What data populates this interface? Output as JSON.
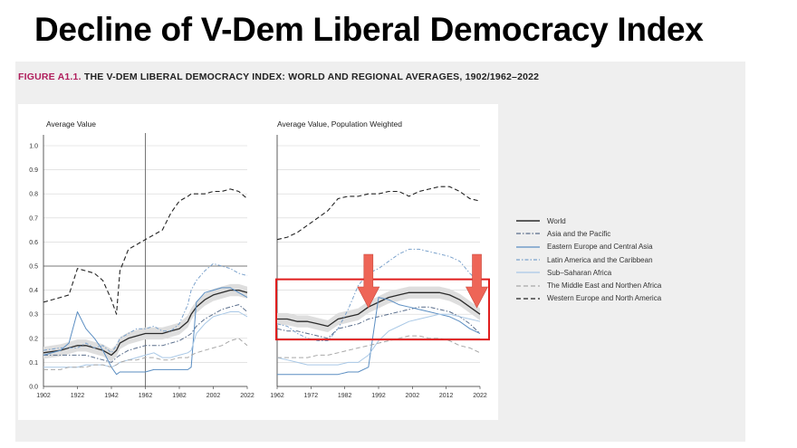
{
  "slide": {
    "title": "Decline of V-Dem Liberal Democracy Index"
  },
  "figure": {
    "label": "FIGURE A1.1.",
    "caption": "THE V-DEM LIBERAL DEMOCRACY INDEX: WORLD AND REGIONAL AVERAGES, 1902/1962–2022"
  },
  "colors": {
    "world": "#2b2b2b",
    "asia_pacific": "#5a6e8c",
    "eastern_europe": "#5b8ec2",
    "latin_america": "#7ba2cc",
    "sub_saharan": "#a9c8e6",
    "middle_east": "#a8a8a8",
    "western_europe": "#222222",
    "highlight_box": "#e01e1e",
    "arrow": "#ee6557",
    "confidence_band": "#dedede"
  },
  "legend": [
    {
      "key": "world",
      "label": "World"
    },
    {
      "key": "asia_pacific",
      "label": "Asia and the Pacific"
    },
    {
      "key": "eastern_europe",
      "label": "Eastern Europe and Central Asia"
    },
    {
      "key": "latin_america",
      "label": "Latin America and the Caribbean"
    },
    {
      "key": "sub_saharan",
      "label": "Sub–Saharan Africa"
    },
    {
      "key": "middle_east",
      "label": "The Middle East and Northen Africa"
    },
    {
      "key": "western_europe",
      "label": "Western Europe and North America"
    }
  ],
  "chart_data": [
    {
      "type": "line",
      "title": "Average Value",
      "xlabel": "",
      "ylabel": "",
      "xlim": [
        1902,
        2022
      ],
      "ylim": [
        0,
        1
      ],
      "x_ticks": [
        "1902",
        "1922",
        "1942",
        "1962",
        "1982",
        "2002",
        "2022"
      ],
      "y_ticks": [
        "0.0",
        "0.1",
        "0.2",
        "0.3",
        "0.4",
        "0.5",
        "0.6",
        "0.7",
        "0.8",
        "0.9",
        "1.0"
      ],
      "reference_lines": {
        "x": 1962,
        "y": 0.5
      },
      "grid": "horizontal",
      "x": [
        1902,
        1912,
        1917,
        1922,
        1927,
        1932,
        1937,
        1942,
        1945,
        1947,
        1952,
        1957,
        1962,
        1967,
        1972,
        1977,
        1982,
        1987,
        1989,
        1992,
        1997,
        2002,
        2007,
        2012,
        2017,
        2022
      ],
      "series": [
        {
          "key": "world",
          "name": "World",
          "band": 0.025,
          "values": [
            0.14,
            0.15,
            0.16,
            0.17,
            0.17,
            0.16,
            0.15,
            0.13,
            0.15,
            0.18,
            0.2,
            0.21,
            0.22,
            0.22,
            0.22,
            0.23,
            0.24,
            0.27,
            0.3,
            0.33,
            0.36,
            0.38,
            0.39,
            0.4,
            0.4,
            0.39
          ]
        },
        {
          "key": "asia_pacific",
          "name": "Asia and the Pacific",
          "values": [
            0.13,
            0.13,
            0.13,
            0.13,
            0.13,
            0.12,
            0.11,
            0.1,
            0.12,
            0.13,
            0.15,
            0.16,
            0.17,
            0.17,
            0.17,
            0.18,
            0.19,
            0.21,
            0.22,
            0.25,
            0.28,
            0.3,
            0.32,
            0.33,
            0.34,
            0.31
          ]
        },
        {
          "key": "eastern_europe",
          "name": "Eastern Europe and Central Asia",
          "values": [
            0.13,
            0.15,
            0.18,
            0.31,
            0.24,
            0.2,
            0.15,
            0.08,
            0.05,
            0.06,
            0.06,
            0.06,
            0.06,
            0.07,
            0.07,
            0.07,
            0.07,
            0.07,
            0.08,
            0.35,
            0.39,
            0.4,
            0.41,
            0.41,
            0.39,
            0.37
          ]
        },
        {
          "key": "latin_america",
          "name": "Latin America and the Caribbean",
          "values": [
            0.15,
            0.16,
            0.16,
            0.16,
            0.18,
            0.16,
            0.17,
            0.14,
            0.17,
            0.2,
            0.22,
            0.24,
            0.24,
            0.25,
            0.23,
            0.23,
            0.26,
            0.34,
            0.4,
            0.44,
            0.48,
            0.51,
            0.5,
            0.49,
            0.47,
            0.46
          ]
        },
        {
          "key": "sub_saharan",
          "name": "Sub–Saharan Africa",
          "values": [
            0.08,
            0.08,
            0.08,
            0.08,
            0.09,
            0.09,
            0.09,
            0.08,
            0.09,
            0.1,
            0.11,
            0.12,
            0.13,
            0.14,
            0.12,
            0.12,
            0.13,
            0.14,
            0.15,
            0.22,
            0.26,
            0.29,
            0.3,
            0.31,
            0.31,
            0.29
          ]
        },
        {
          "key": "middle_east",
          "name": "The Middle East and Northen Africa",
          "values": [
            0.07,
            0.07,
            0.08,
            0.08,
            0.08,
            0.09,
            0.09,
            0.08,
            0.09,
            0.1,
            0.11,
            0.11,
            0.12,
            0.12,
            0.11,
            0.11,
            0.12,
            0.12,
            0.13,
            0.14,
            0.15,
            0.16,
            0.17,
            0.19,
            0.2,
            0.17
          ]
        },
        {
          "key": "western_europe",
          "name": "Western Europe and North America",
          "values": [
            0.35,
            0.37,
            0.38,
            0.49,
            0.48,
            0.47,
            0.44,
            0.36,
            0.3,
            0.48,
            0.57,
            0.59,
            0.61,
            0.63,
            0.65,
            0.72,
            0.77,
            0.79,
            0.8,
            0.8,
            0.8,
            0.81,
            0.81,
            0.82,
            0.81,
            0.78
          ]
        }
      ]
    },
    {
      "type": "line",
      "title": "Average Value, Population Weighted",
      "xlabel": "",
      "ylabel": "",
      "xlim": [
        1962,
        2022
      ],
      "ylim": [
        0,
        1
      ],
      "x_ticks": [
        "1962",
        "1972",
        "1982",
        "1992",
        "2002",
        "2012",
        "2022"
      ],
      "grid": "horizontal",
      "x": [
        1962,
        1965,
        1968,
        1971,
        1974,
        1977,
        1980,
        1983,
        1986,
        1989,
        1992,
        1995,
        1998,
        2001,
        2004,
        2007,
        2010,
        2013,
        2016,
        2019,
        2022
      ],
      "series": [
        {
          "key": "world",
          "name": "World",
          "band": 0.025,
          "values": [
            0.28,
            0.28,
            0.27,
            0.27,
            0.26,
            0.25,
            0.28,
            0.29,
            0.3,
            0.33,
            0.35,
            0.37,
            0.38,
            0.39,
            0.39,
            0.39,
            0.39,
            0.38,
            0.36,
            0.33,
            0.3
          ]
        },
        {
          "key": "asia_pacific",
          "name": "Asia and the Pacific",
          "values": [
            0.24,
            0.23,
            0.23,
            0.22,
            0.21,
            0.2,
            0.24,
            0.25,
            0.26,
            0.28,
            0.29,
            0.3,
            0.31,
            0.32,
            0.33,
            0.33,
            0.32,
            0.31,
            0.29,
            0.26,
            0.22
          ]
        },
        {
          "key": "eastern_europe",
          "name": "Eastern Europe and Central Asia",
          "values": [
            0.05,
            0.05,
            0.05,
            0.05,
            0.05,
            0.05,
            0.05,
            0.06,
            0.06,
            0.08,
            0.37,
            0.36,
            0.34,
            0.33,
            0.32,
            0.31,
            0.3,
            0.29,
            0.27,
            0.24,
            0.22
          ]
        },
        {
          "key": "latin_america",
          "name": "Latin America and the Caribbean",
          "values": [
            0.26,
            0.25,
            0.22,
            0.2,
            0.19,
            0.19,
            0.24,
            0.32,
            0.42,
            0.47,
            0.49,
            0.52,
            0.55,
            0.57,
            0.57,
            0.56,
            0.55,
            0.54,
            0.52,
            0.47,
            0.43
          ]
        },
        {
          "key": "sub_saharan",
          "name": "Sub–Saharan Africa",
          "values": [
            0.12,
            0.11,
            0.1,
            0.09,
            0.09,
            0.09,
            0.09,
            0.1,
            0.1,
            0.13,
            0.19,
            0.23,
            0.25,
            0.27,
            0.28,
            0.29,
            0.3,
            0.3,
            0.29,
            0.28,
            0.27
          ]
        },
        {
          "key": "middle_east",
          "name": "The Middle East and Northen Africa",
          "values": [
            0.12,
            0.12,
            0.12,
            0.12,
            0.13,
            0.13,
            0.14,
            0.15,
            0.16,
            0.17,
            0.18,
            0.19,
            0.2,
            0.21,
            0.21,
            0.2,
            0.2,
            0.19,
            0.17,
            0.16,
            0.14
          ]
        },
        {
          "key": "western_europe",
          "name": "Western Europe and North America",
          "values": [
            0.61,
            0.62,
            0.64,
            0.67,
            0.7,
            0.73,
            0.78,
            0.79,
            0.79,
            0.8,
            0.8,
            0.81,
            0.81,
            0.79,
            0.81,
            0.82,
            0.83,
            0.83,
            0.81,
            0.78,
            0.77
          ]
        }
      ],
      "annotations": [
        {
          "type": "highlight-box",
          "x_range": [
            1962,
            2022
          ],
          "y_range": [
            0.195,
            0.445
          ]
        },
        {
          "type": "down-arrow",
          "x": 1989
        },
        {
          "type": "down-arrow",
          "x": 2020
        }
      ]
    }
  ]
}
